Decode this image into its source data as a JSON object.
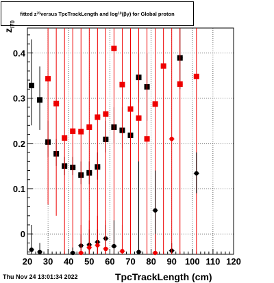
{
  "title": {
    "prefix": "fitted  z",
    "sub1": "70",
    "mid": " versus TpcTrackLength and log",
    "sub2": "10",
    "suffix": "(βγ) for Global proton"
  },
  "ylabel": {
    "main": "z",
    "sub": "l70"
  },
  "xlabel": "TpcTrackLength (cm)",
  "datestamp": "Thu Nov 24 13:01:34 2022",
  "chart_data": {
    "type": "scatter",
    "title": "fitted z_l70 versus TpcTrackLength and log10(βγ) for Global proton",
    "xlabel": "TpcTrackLength (cm)",
    "ylabel": "z_l70",
    "xlim": [
      20,
      120
    ],
    "ylim": [
      -0.045,
      0.455
    ],
    "x_ticks": [
      20,
      30,
      40,
      50,
      60,
      70,
      80,
      90,
      100,
      110,
      120
    ],
    "y_ticks": [
      0,
      0.1,
      0.2,
      0.3,
      0.4
    ],
    "x_tick_labels": [
      "20",
      "30",
      "40",
      "50",
      "60",
      "70",
      "80",
      "90",
      "100",
      "110",
      "120"
    ],
    "y_tick_labels": [
      "0",
      "0.1",
      "0.2",
      "0.3",
      "0.4"
    ],
    "grid": true,
    "series": [
      {
        "color": "#000000",
        "marker": "square",
        "points": [
          {
            "x": 22,
            "y": 0.328,
            "lo": 0.24,
            "hi": 0.43
          },
          {
            "x": 26,
            "y": 0.296,
            "lo": 0.23,
            "hi": 0.37
          },
          {
            "x": 30,
            "y": 0.203,
            "lo": 0.17,
            "hi": 0.25
          },
          {
            "x": 34,
            "y": 0.177,
            "lo": 0.15,
            "hi": 0.21
          },
          {
            "x": 38,
            "y": 0.15,
            "lo": 0.13,
            "hi": 0.17
          },
          {
            "x": 42,
            "y": 0.147,
            "lo": 0.13,
            "hi": 0.17
          },
          {
            "x": 46,
            "y": 0.13,
            "lo": 0.11,
            "hi": 0.16
          },
          {
            "x": 50,
            "y": 0.135,
            "lo": 0.11,
            "hi": 0.16
          },
          {
            "x": 54,
            "y": 0.148,
            "lo": 0.12,
            "hi": 0.18
          },
          {
            "x": 58,
            "y": 0.209,
            "lo": 0.18,
            "hi": 0.25
          },
          {
            "x": 62,
            "y": 0.236,
            "lo": 0.2,
            "hi": 0.28
          },
          {
            "x": 66,
            "y": 0.229,
            "lo": 0.19,
            "hi": 0.28
          },
          {
            "x": 70,
            "y": 0.218,
            "lo": 0.17,
            "hi": 0.27
          },
          {
            "x": 74,
            "y": 0.346,
            "lo": 0.29,
            "hi": 0.4
          },
          {
            "x": 78,
            "y": 0.325,
            "lo": 0.25,
            "hi": 0.4
          },
          {
            "x": 94,
            "y": 0.389,
            "lo": 0.32,
            "hi": 0.455
          }
        ]
      },
      {
        "color": "#ee0000",
        "marker": "square",
        "points": [
          {
            "x": 30,
            "y": 0.343,
            "lo": 0.065,
            "hi": 0.455
          },
          {
            "x": 34,
            "y": 0.288,
            "lo": 0.04,
            "hi": 0.455
          },
          {
            "x": 38,
            "y": 0.212,
            "lo": -0.045,
            "hi": 0.455
          },
          {
            "x": 42,
            "y": 0.227,
            "lo": -0.045,
            "hi": 0.455
          },
          {
            "x": 46,
            "y": 0.226,
            "lo": -0.045,
            "hi": 0.455
          },
          {
            "x": 50,
            "y": 0.236,
            "lo": -0.045,
            "hi": 0.455
          },
          {
            "x": 54,
            "y": 0.258,
            "lo": -0.045,
            "hi": 0.455
          },
          {
            "x": 58,
            "y": 0.265,
            "lo": -0.045,
            "hi": 0.455
          },
          {
            "x": 62,
            "y": 0.41,
            "lo": -0.045,
            "hi": 0.455
          },
          {
            "x": 66,
            "y": 0.33,
            "lo": -0.045,
            "hi": 0.455
          },
          {
            "x": 70,
            "y": 0.276,
            "lo": -0.045,
            "hi": 0.455
          },
          {
            "x": 74,
            "y": 0.256,
            "lo": -0.045,
            "hi": 0.455
          },
          {
            "x": 78,
            "y": 0.21,
            "lo": -0.045,
            "hi": 0.455
          },
          {
            "x": 82,
            "y": 0.287,
            "lo": -0.045,
            "hi": 0.455
          },
          {
            "x": 86,
            "y": 0.371,
            "lo": -0.045,
            "hi": 0.455
          },
          {
            "x": 94,
            "y": 0.331,
            "lo": -0.045,
            "hi": 0.455
          },
          {
            "x": 102,
            "y": 0.348,
            "lo": -0.045,
            "hi": 0.455
          }
        ]
      },
      {
        "color": "#000000",
        "marker": "circle",
        "points": [
          {
            "x": 22,
            "y": -0.035,
            "lo": -0.045,
            "hi": 0.02
          },
          {
            "x": 26,
            "y": -0.04,
            "lo": -0.045,
            "hi": -0.02
          },
          {
            "x": 42,
            "y": -0.042,
            "lo": -0.045,
            "hi": -0.03
          },
          {
            "x": 46,
            "y": -0.026,
            "lo": -0.045,
            "hi": 0.0
          },
          {
            "x": 50,
            "y": -0.024,
            "lo": -0.045,
            "hi": 0.01
          },
          {
            "x": 54,
            "y": -0.018,
            "lo": -0.045,
            "hi": 0.01
          },
          {
            "x": 58,
            "y": -0.01,
            "lo": -0.045,
            "hi": 0.02
          },
          {
            "x": 62,
            "y": -0.027,
            "lo": -0.045,
            "hi": 0.03
          },
          {
            "x": 74,
            "y": -0.04,
            "lo": -0.045,
            "hi": 0.16
          },
          {
            "x": 82,
            "y": 0.052,
            "lo": -0.045,
            "hi": 0.14
          },
          {
            "x": 90,
            "y": -0.037,
            "lo": -0.045,
            "hi": -0.02
          },
          {
            "x": 102,
            "y": 0.134,
            "lo": 0.09,
            "hi": 0.18
          }
        ]
      },
      {
        "color": "#ee0000",
        "marker": "circle",
        "points": [
          {
            "x": 46,
            "y": -0.042,
            "lo": -0.045,
            "hi": 0.02
          },
          {
            "x": 50,
            "y": -0.03,
            "lo": -0.045,
            "hi": 0.03
          },
          {
            "x": 54,
            "y": -0.025,
            "lo": -0.045,
            "hi": 0.04
          },
          {
            "x": 58,
            "y": -0.033,
            "lo": -0.045,
            "hi": 0.03
          },
          {
            "x": 66,
            "y": -0.038,
            "lo": -0.045,
            "hi": 0.02
          },
          {
            "x": 82,
            "y": -0.042,
            "lo": -0.045,
            "hi": 0.0
          },
          {
            "x": 90,
            "y": 0.21,
            "lo": -0.045,
            "hi": 0.455
          }
        ]
      }
    ]
  }
}
